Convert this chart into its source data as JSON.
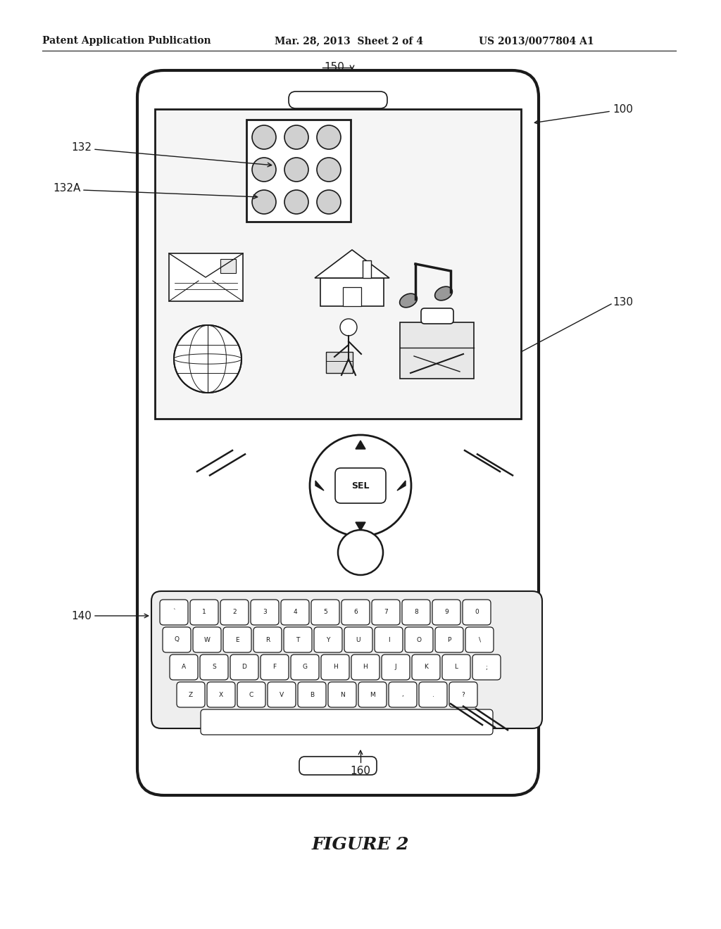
{
  "title_left": "Patent Application Publication",
  "title_mid": "Mar. 28, 2013  Sheet 2 of 4",
  "title_right": "US 2013/0077804 A1",
  "figure_label": "FIGURE 2",
  "bg_color": "#ffffff",
  "line_color": "#1a1a1a",
  "label_100": "100",
  "label_130": "130",
  "label_132": "132",
  "label_132A": "132A",
  "label_140": "140",
  "label_150": "150",
  "label_160": "160"
}
